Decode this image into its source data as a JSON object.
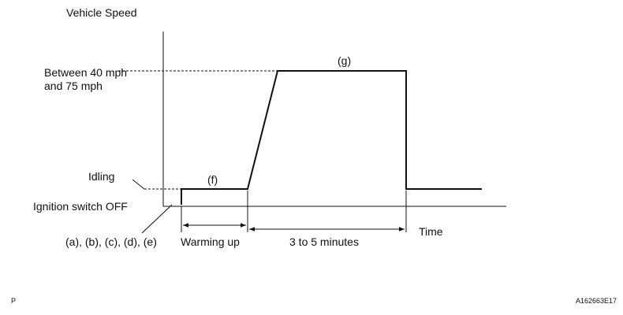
{
  "y_axis_label": "Vehicle Speed",
  "x_axis_label": "Time",
  "levels": {
    "high": "Between 40 mph\nand 75 mph",
    "idle": "Idling",
    "off": "Ignition switch OFF"
  },
  "steps": {
    "initial": "(a), (b), (c), (d), (e)",
    "idle_step": "(f)",
    "high_step": "(g)"
  },
  "intervals": {
    "warm": "Warming up",
    "drive": "3 to 5 minutes"
  },
  "footer": {
    "left": "P",
    "right": "A162663E17"
  }
}
